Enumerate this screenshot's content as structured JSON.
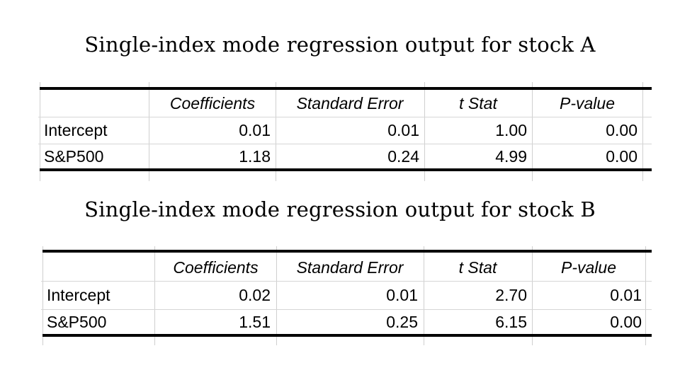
{
  "tables": [
    {
      "title": "Single-index mode regression output for stock A",
      "headers": [
        "Coefficients",
        "Standard Error",
        "t Stat",
        "P-value"
      ],
      "rows": [
        {
          "label": "Intercept",
          "values": [
            "0.01",
            "0.01",
            "1.00",
            "0.00"
          ]
        },
        {
          "label": "S&P500",
          "values": [
            "1.18",
            "0.24",
            "4.99",
            "0.00"
          ]
        }
      ]
    },
    {
      "title": "Single-index mode regression output for stock B",
      "headers": [
        "Coefficients",
        "Standard Error",
        "t Stat",
        "P-value"
      ],
      "rows": [
        {
          "label": "Intercept",
          "values": [
            "0.02",
            "0.01",
            "2.70",
            "0.01"
          ]
        },
        {
          "label": "S&P500",
          "values": [
            "1.51",
            "0.25",
            "6.15",
            "0.00"
          ]
        }
      ]
    }
  ]
}
